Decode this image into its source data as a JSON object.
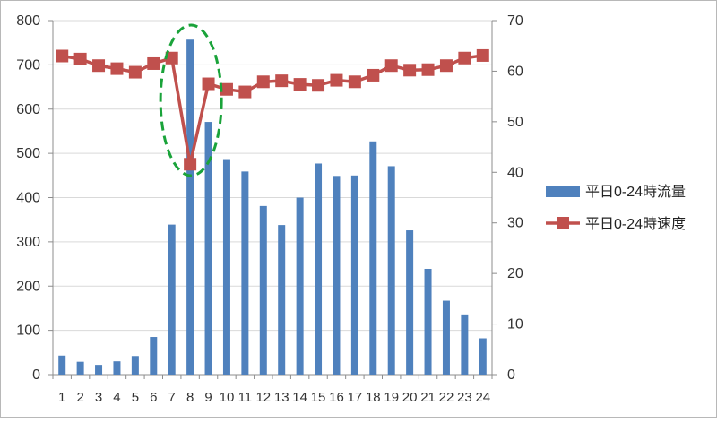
{
  "chart_data": {
    "type": "bar+line",
    "categories": [
      "1",
      "2",
      "3",
      "4",
      "5",
      "6",
      "7",
      "8",
      "9",
      "10",
      "11",
      "12",
      "13",
      "14",
      "15",
      "16",
      "17",
      "18",
      "19",
      "20",
      "21",
      "22",
      "23",
      "24"
    ],
    "series": [
      {
        "name": "平日0-24時流量",
        "type": "bar",
        "axis": "left",
        "color": "#4f81bd",
        "values": [
          43,
          29,
          22,
          30,
          42,
          85,
          339,
          757,
          571,
          487,
          459,
          381,
          338,
          400,
          477,
          449,
          450,
          527,
          471,
          326,
          239,
          167,
          136,
          82
        ]
      },
      {
        "name": "平日0-24時速度",
        "type": "line",
        "axis": "right",
        "color": "#c0504d",
        "marker": "square",
        "values": [
          63.0,
          62.4,
          61.1,
          60.5,
          59.8,
          61.5,
          62.6,
          41.6,
          57.5,
          56.4,
          55.9,
          57.9,
          58.1,
          57.4,
          57.2,
          58.2,
          57.9,
          59.2,
          61.1,
          60.2,
          60.3,
          61.1,
          62.6,
          63.1
        ]
      }
    ],
    "y_left": {
      "min": 0,
      "max": 800,
      "step": 100,
      "ticks": [
        "0",
        "100",
        "200",
        "300",
        "400",
        "500",
        "600",
        "700",
        "800"
      ]
    },
    "y_right": {
      "min": 0,
      "max": 70,
      "step": 10,
      "ticks": [
        "0",
        "10",
        "20",
        "30",
        "40",
        "50",
        "60",
        "70"
      ]
    },
    "grid": true,
    "legend_position": "right",
    "annotation": {
      "type": "dashed-ellipse",
      "color": "#1aa33a",
      "highlight_category": "8"
    }
  }
}
